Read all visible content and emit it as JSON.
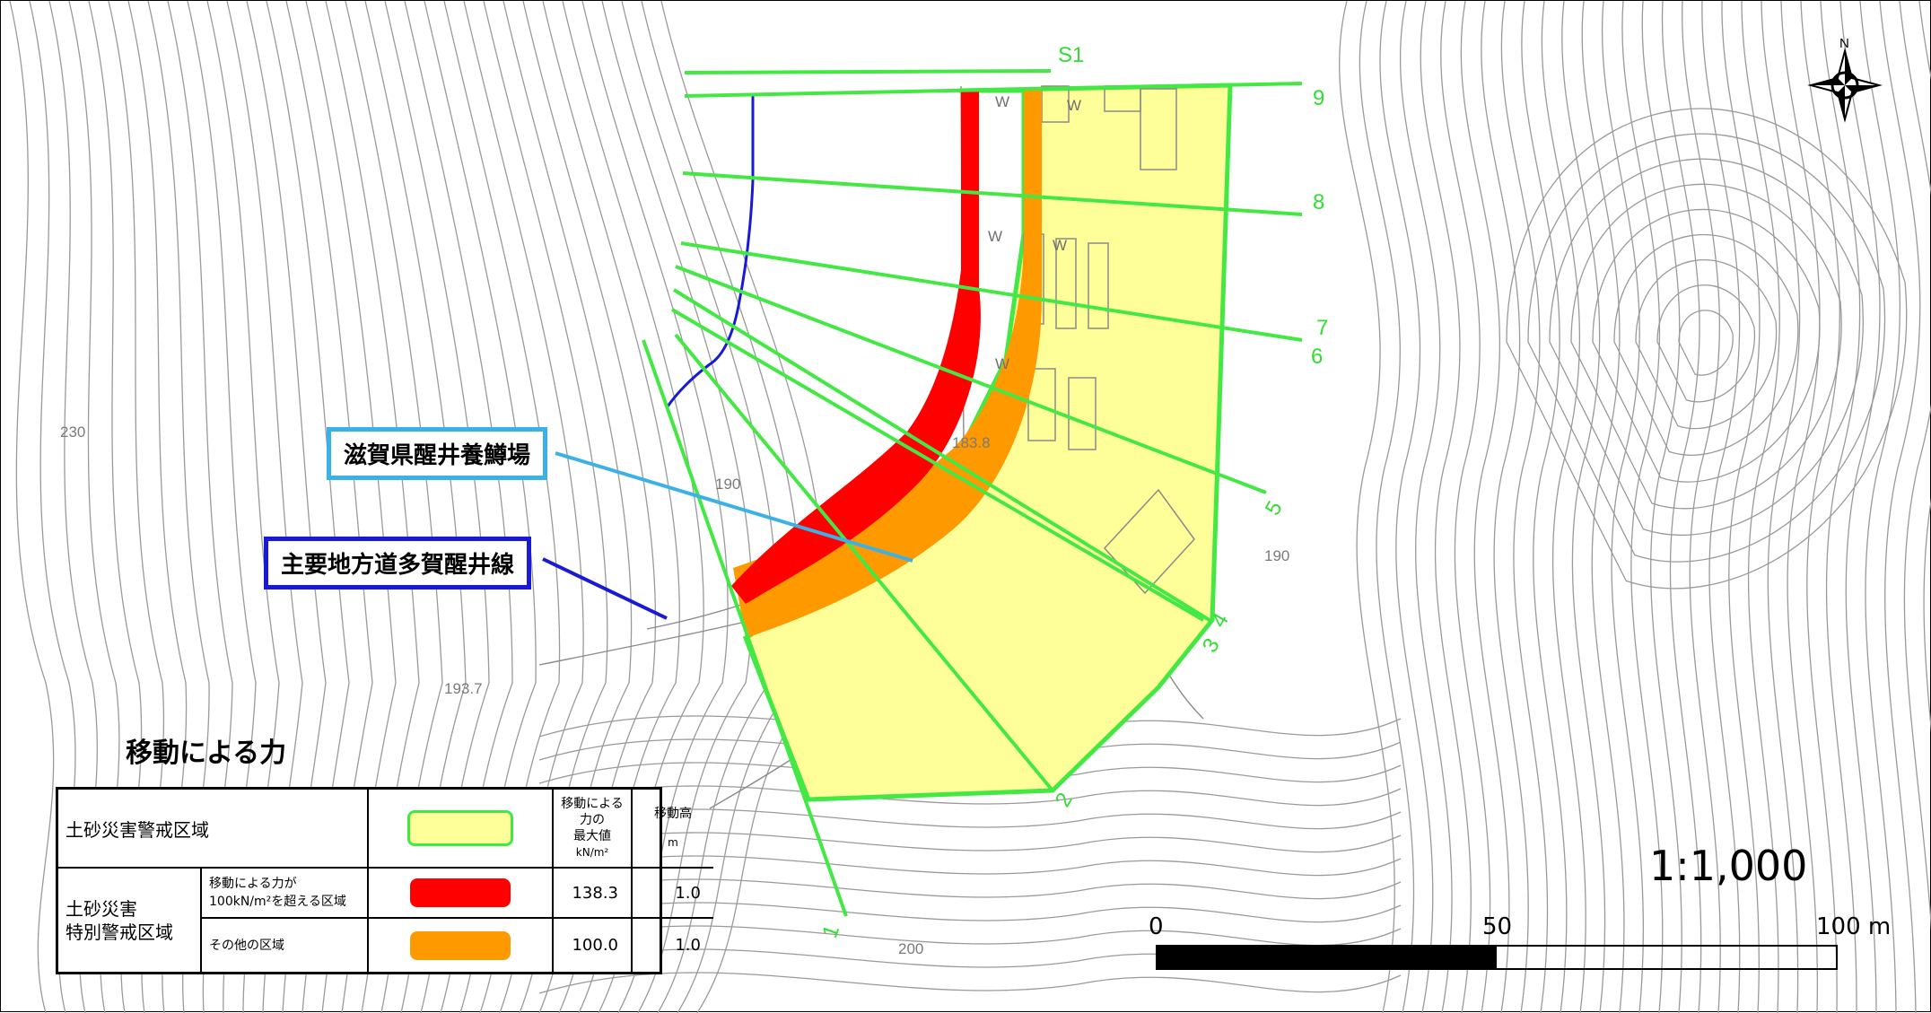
{
  "map": {
    "type": "landslide-hazard-map",
    "compass_label": "N",
    "profile_line_labels": [
      "1",
      "2",
      "3",
      "4",
      "5",
      "6",
      "7",
      "8",
      "9",
      "S1"
    ],
    "elevation_labels": [
      "230",
      "190",
      "190",
      "193.7",
      "183.8",
      "200"
    ],
    "building_marks": [
      "W",
      "W",
      "W",
      "W",
      "W"
    ],
    "colors": {
      "warning_zone": "#ffff99",
      "special_high_force": "#ff0000",
      "special_other": "#ff9900",
      "profile_lines": "#44e844",
      "road": "#1a1ad6",
      "facility_callout": "#3cb1e6",
      "contours": "#9a9a9a"
    }
  },
  "callouts": {
    "facility": "滋賀県醒井養鱒場",
    "road": "主要地方道多賀醒井線"
  },
  "legend": {
    "title": "移動による力",
    "col_force_header_lines": [
      "移動による",
      "力の",
      "最大値"
    ],
    "col_force_unit": "kN/m²",
    "col_height_header": "移動高",
    "col_height_unit": "m",
    "warning_zone_label": "土砂災害警戒区域",
    "special_zone_label_lines": [
      "土砂災害",
      "特別警戒区域"
    ],
    "row_high_label_lines": [
      "移動による力が",
      "100kN/m²を超える区域"
    ],
    "row_other_label": "その他の区域",
    "rows": [
      {
        "force": "138.3",
        "height": "1.0"
      },
      {
        "force": "100.0",
        "height": "1.0"
      }
    ]
  },
  "scale": {
    "ratio": "1:1,000",
    "label_start": "0",
    "label_mid": "50",
    "label_end": "100 m"
  }
}
